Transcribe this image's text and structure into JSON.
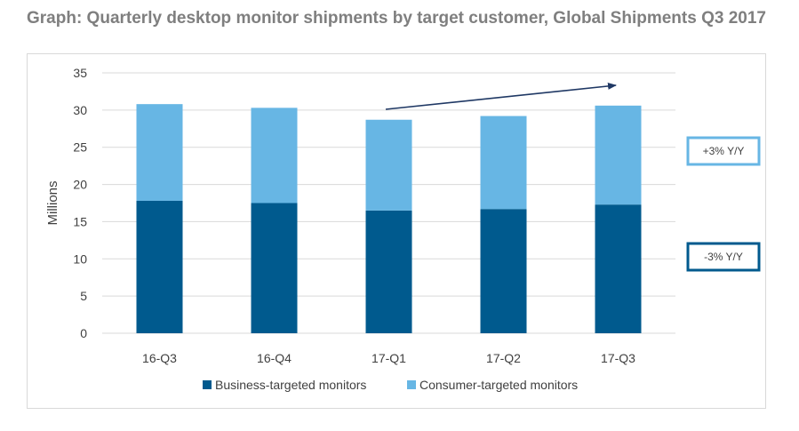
{
  "title": "Graph: Quarterly desktop monitor shipments by target customer, Global Shipments Q3 2017",
  "colors": {
    "business": "#005a8e",
    "consumer": "#67b6e4",
    "grid": "#d9d9d9",
    "arrow": "#1f3864",
    "axis_text": "#404040"
  },
  "chart_data": {
    "type": "bar",
    "stacked": true,
    "categories": [
      "16-Q3",
      "16-Q4",
      "17-Q1",
      "17-Q2",
      "17-Q3"
    ],
    "series": [
      {
        "name": "Business-targeted monitors",
        "values": [
          17.8,
          17.5,
          16.5,
          16.7,
          17.3
        ]
      },
      {
        "name": "Consumer-targeted monitors",
        "values": [
          13.0,
          12.8,
          12.2,
          12.5,
          13.3
        ]
      }
    ],
    "ylabel": "Millions",
    "xlabel": "",
    "ylim": [
      0,
      35
    ],
    "yticks": [
      0,
      5,
      10,
      15,
      20,
      25,
      30,
      35
    ],
    "grid": true,
    "legend": "bottom",
    "annotations": [
      {
        "text": "+3% Y/Y",
        "series": "Consumer-targeted monitors"
      },
      {
        "text": "-3% Y/Y",
        "series": "Business-targeted monitors"
      }
    ]
  }
}
